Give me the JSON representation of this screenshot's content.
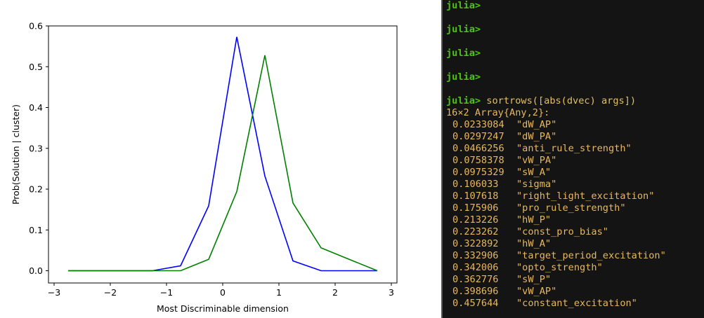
{
  "chart_data": {
    "type": "line",
    "xlabel": "Most Discriminable dimension",
    "ylabel": "Prob(Solution | cluster)",
    "xlim": [
      -3.1,
      3.1
    ],
    "ylim": [
      -0.03,
      0.6
    ],
    "xticks": [
      -3,
      -2,
      -1,
      0,
      1,
      2,
      3
    ],
    "xtick_labels": [
      "−3",
      "−2",
      "−1",
      "0",
      "1",
      "2",
      "3"
    ],
    "yticks": [
      0.0,
      0.1,
      0.2,
      0.3,
      0.4,
      0.5,
      0.6
    ],
    "ytick_labels": [
      "0.0",
      "0.1",
      "0.2",
      "0.3",
      "0.4",
      "0.5",
      "0.6"
    ],
    "grid": false,
    "series": [
      {
        "color": "#0000ff",
        "x": [
          -2.75,
          -2.25,
          -1.75,
          -1.25,
          -0.75,
          -0.25,
          0.25,
          0.75,
          1.25,
          1.75,
          2.25,
          2.75
        ],
        "y": [
          0.0,
          0.0,
          0.0,
          0.0,
          0.012,
          0.159,
          0.573,
          0.232,
          0.024,
          0.0,
          0.0,
          0.0
        ]
      },
      {
        "color": "#008000",
        "x": [
          -2.75,
          -2.25,
          -1.75,
          -1.25,
          -0.75,
          -0.25,
          0.25,
          0.75,
          1.25,
          1.75,
          2.25,
          2.75
        ],
        "y": [
          0.0,
          0.0,
          0.0,
          0.0,
          0.0,
          0.028,
          0.194,
          0.528,
          0.166,
          0.056,
          0.028,
          0.0
        ]
      }
    ]
  },
  "terminal": {
    "prompt": "julia>",
    "empty_prompts": 4,
    "command": "sortrows([abs(dvec) args])",
    "header": "16×2 Array{Any,2}:",
    "rows": [
      {
        "num": "0.0233084",
        "str": "\"dW_AP\""
      },
      {
        "num": "0.0297247",
        "str": "\"dW_PA\""
      },
      {
        "num": "0.0466256",
        "str": "\"anti_rule_strength\""
      },
      {
        "num": "0.0758378",
        "str": "\"vW_PA\""
      },
      {
        "num": "0.0975329",
        "str": "\"sW_A\""
      },
      {
        "num": "0.106033",
        "str": "\"sigma\""
      },
      {
        "num": "0.107618",
        "str": "\"right_light_excitation\""
      },
      {
        "num": "0.175906",
        "str": "\"pro_rule_strength\""
      },
      {
        "num": "0.213226",
        "str": "\"hW_P\""
      },
      {
        "num": "0.223262",
        "str": "\"const_pro_bias\""
      },
      {
        "num": "0.322892",
        "str": "\"hW_A\""
      },
      {
        "num": "0.332906",
        "str": "\"target_period_excitation\""
      },
      {
        "num": "0.342006",
        "str": "\"opto_strength\""
      },
      {
        "num": "0.362776",
        "str": "\"sW_P\""
      },
      {
        "num": "0.398696",
        "str": "\"vW_AP\""
      },
      {
        "num": "0.457644",
        "str": "\"constant_excitation\""
      }
    ]
  }
}
